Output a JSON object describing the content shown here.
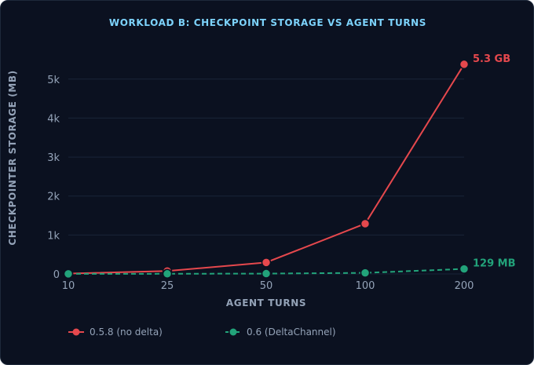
{
  "chart_data": {
    "type": "line",
    "title": "WORKLOAD B: CHECKPOINT STORAGE VS AGENT TURNS",
    "xlabel": "AGENT TURNS",
    "ylabel": "CHECKPOINTER STORAGE (MB)",
    "x": [
      10,
      25,
      50,
      100,
      200
    ],
    "x_tick_labels": [
      "10",
      "25",
      "50",
      "100",
      "200"
    ],
    "ylim": [
      0,
      5600
    ],
    "y_ticks": [
      0,
      1000,
      2000,
      3000,
      4000,
      5000
    ],
    "y_tick_labels": [
      "0",
      "1k",
      "2k",
      "3k",
      "4k",
      "5k"
    ],
    "grid": true,
    "legend_position": "bottom-left",
    "series": [
      {
        "name": "0.5.8 (no delta)",
        "color": "#e5484d",
        "dash": "solid",
        "values": [
          10,
          75,
          295,
          1290,
          5380
        ],
        "end_label": "5.3 GB"
      },
      {
        "name": "0.6 (DeltaChannel)",
        "color": "#22a37a",
        "dash": "dashed",
        "values": [
          2,
          4,
          9,
          28,
          129
        ],
        "end_label": "129 MB"
      }
    ]
  }
}
